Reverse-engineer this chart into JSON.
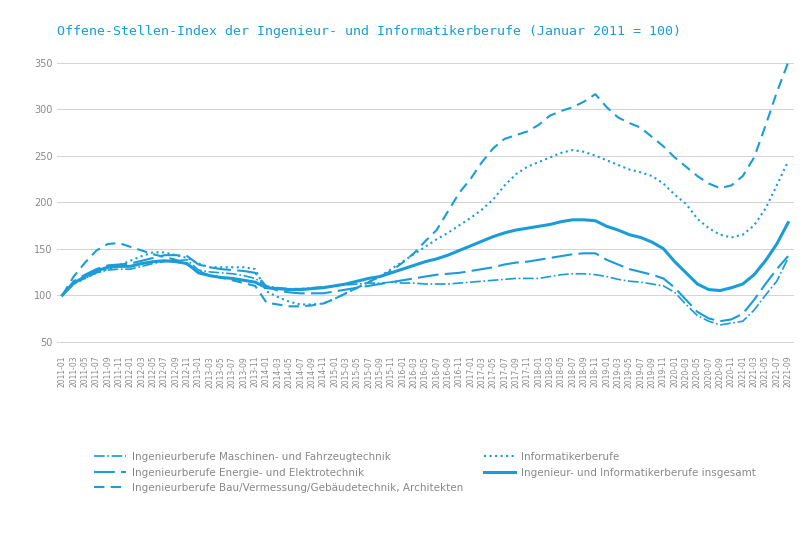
{
  "title": "Offene-Stellen-Index der Ingenieur- und Informatikerberufe (Januar 2011 = 100)",
  "title_color": "#1a9cd8",
  "background_color": "#ffffff",
  "grid_color": "#cccccc",
  "tick_color": "#888888",
  "ylim": [
    40,
    365
  ],
  "yticks": [
    50,
    100,
    150,
    200,
    250,
    300,
    350
  ],
  "legend_labels": [
    "Ingenieurberufe Maschinen- und Fahrzeugtechnik",
    "Ingenieurberufe Energie- und Elektrotechnik",
    "Ingenieurberufe Bau/Vermessung/Gebäudetechnik, Architekten",
    "Informatikerberufe",
    "Ingenieur- und Informatikerberufe insgesamt"
  ],
  "line_color": "#1a9cd8",
  "line_styles": [
    "dashdot",
    "dashed_long",
    "dashed",
    "dotted",
    "solid"
  ],
  "line_widths": [
    1.2,
    1.5,
    1.5,
    1.5,
    2.2
  ],
  "x_labels": [
    "2011-01",
    "2011-03",
    "2011-05",
    "2011-07",
    "2011-09",
    "2011-11",
    "2012-01",
    "2012-03",
    "2012-05",
    "2012-07",
    "2012-09",
    "2012-11",
    "2013-01",
    "2013-03",
    "2013-05",
    "2013-07",
    "2013-09",
    "2013-11",
    "2014-01",
    "2014-03",
    "2014-05",
    "2014-07",
    "2014-09",
    "2014-11",
    "2015-01",
    "2015-03",
    "2015-05",
    "2015-07",
    "2015-09",
    "2015-11",
    "2016-01",
    "2016-03",
    "2016-05",
    "2016-07",
    "2016-09",
    "2016-11",
    "2017-01",
    "2017-03",
    "2017-05",
    "2017-07",
    "2017-09",
    "2017-11",
    "2018-01",
    "2018-03",
    "2018-05",
    "2018-07",
    "2018-09",
    "2018-11",
    "2019-01",
    "2019-03",
    "2019-05",
    "2019-07",
    "2019-09",
    "2019-11",
    "2020-01",
    "2020-03",
    "2020-05",
    "2020-07",
    "2020-09",
    "2020-11",
    "2021-01",
    "2021-03",
    "2021-05",
    "2021-07",
    "2021-09"
  ],
  "series": {
    "maschinen": [
      100,
      113,
      118,
      124,
      127,
      128,
      128,
      131,
      134,
      136,
      137,
      138,
      127,
      125,
      124,
      123,
      121,
      118,
      110,
      108,
      107,
      107,
      108,
      109,
      110,
      111,
      112,
      113,
      113,
      114,
      113,
      113,
      112,
      112,
      112,
      113,
      114,
      115,
      116,
      117,
      118,
      118,
      118,
      120,
      122,
      123,
      123,
      122,
      120,
      117,
      115,
      114,
      112,
      110,
      103,
      90,
      78,
      72,
      68,
      70,
      72,
      84,
      100,
      115,
      140
    ],
    "energie": [
      100,
      115,
      122,
      128,
      132,
      133,
      134,
      137,
      140,
      143,
      143,
      142,
      133,
      130,
      128,
      127,
      126,
      124,
      109,
      105,
      103,
      102,
      102,
      102,
      104,
      106,
      108,
      110,
      112,
      114,
      116,
      118,
      120,
      122,
      123,
      124,
      126,
      128,
      130,
      133,
      135,
      136,
      138,
      140,
      142,
      144,
      145,
      145,
      138,
      133,
      128,
      125,
      122,
      118,
      108,
      95,
      82,
      75,
      72,
      74,
      80,
      95,
      112,
      128,
      142
    ],
    "bau": [
      100,
      120,
      135,
      148,
      155,
      156,
      152,
      148,
      144,
      141,
      138,
      133,
      126,
      121,
      119,
      116,
      113,
      110,
      92,
      90,
      88,
      88,
      89,
      91,
      96,
      102,
      108,
      114,
      120,
      126,
      135,
      145,
      158,
      170,
      190,
      210,
      225,
      243,
      258,
      268,
      272,
      276,
      283,
      293,
      298,
      302,
      308,
      316,
      302,
      291,
      285,
      280,
      270,
      260,
      248,
      238,
      228,
      220,
      215,
      218,
      228,
      248,
      282,
      318,
      350
    ],
    "informatiker": [
      100,
      112,
      118,
      124,
      128,
      132,
      137,
      142,
      146,
      146,
      143,
      140,
      134,
      130,
      130,
      130,
      130,
      128,
      104,
      98,
      93,
      90,
      90,
      91,
      96,
      102,
      108,
      114,
      120,
      128,
      136,
      144,
      152,
      160,
      167,
      175,
      183,
      192,
      203,
      218,
      230,
      238,
      243,
      248,
      253,
      256,
      254,
      250,
      245,
      240,
      235,
      232,
      228,
      220,
      208,
      198,
      182,
      172,
      165,
      162,
      165,
      175,
      193,
      218,
      244
    ],
    "insgesamt": [
      100,
      113,
      120,
      126,
      130,
      131,
      131,
      134,
      136,
      137,
      136,
      134,
      124,
      121,
      119,
      118,
      116,
      114,
      108,
      107,
      106,
      106,
      107,
      108,
      110,
      112,
      115,
      118,
      120,
      124,
      128,
      132,
      136,
      139,
      143,
      148,
      153,
      158,
      163,
      167,
      170,
      172,
      174,
      176,
      179,
      181,
      181,
      180,
      174,
      170,
      165,
      162,
      157,
      150,
      136,
      124,
      112,
      106,
      105,
      108,
      112,
      122,
      137,
      155,
      178
    ]
  }
}
